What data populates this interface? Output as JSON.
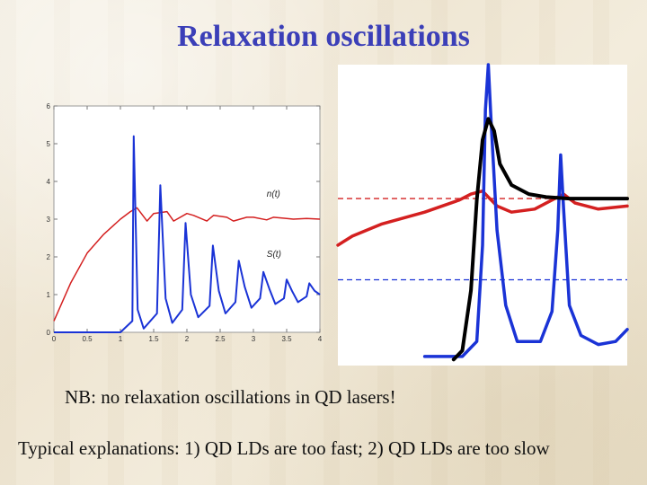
{
  "title": "Relaxation oscillations",
  "note": "NB: no relaxation oscillations in QD lasers!",
  "explanations": "Typical explanations: 1) QD LDs are too fast; 2) QD LDs are too slow",
  "colors": {
    "title": "#3b3fb8",
    "n_curve": "#d42020",
    "s_curve": "#1a33d6",
    "fast_response": "#000000"
  },
  "chart_data": [
    {
      "type": "line",
      "title": "",
      "xlabel": "",
      "ylabel": "",
      "xlim": [
        0,
        4
      ],
      "ylim": [
        0,
        6
      ],
      "xticks": [
        "0",
        "0.5",
        "1",
        "1.5",
        "2",
        "2.5",
        "3",
        "3.5",
        "4"
      ],
      "yticks": [
        "0",
        "1",
        "2",
        "3",
        "4",
        "5",
        "6"
      ],
      "grid": false,
      "annotations": [
        {
          "text": "n(t)",
          "x": 3.2,
          "y": 3.6
        },
        {
          "text": "S(t)",
          "x": 3.2,
          "y": 2.0
        }
      ],
      "series": [
        {
          "name": "n(t)",
          "x": [
            0,
            0.25,
            0.5,
            0.75,
            1.0,
            1.15,
            1.25,
            1.4,
            1.5,
            1.7,
            1.8,
            2.0,
            2.1,
            2.3,
            2.4,
            2.6,
            2.7,
            2.9,
            3.0,
            3.2,
            3.3,
            3.5,
            3.6,
            3.8,
            4.0
          ],
          "y": [
            0.3,
            1.3,
            2.1,
            2.6,
            3.0,
            3.2,
            3.3,
            2.95,
            3.15,
            3.2,
            2.95,
            3.15,
            3.1,
            2.95,
            3.1,
            3.05,
            2.95,
            3.05,
            3.05,
            2.98,
            3.05,
            3.02,
            3.0,
            3.02,
            3.0
          ]
        },
        {
          "name": "S(t)",
          "x": [
            0,
            1.0,
            1.18,
            1.2,
            1.26,
            1.35,
            1.55,
            1.6,
            1.68,
            1.78,
            1.93,
            1.98,
            2.06,
            2.17,
            2.34,
            2.39,
            2.48,
            2.58,
            2.73,
            2.78,
            2.87,
            2.97,
            3.1,
            3.15,
            3.24,
            3.33,
            3.46,
            3.5,
            3.58,
            3.67,
            3.8,
            3.84,
            3.92,
            4.0
          ],
          "y": [
            0,
            0,
            0.3,
            5.2,
            0.6,
            0.1,
            0.5,
            3.9,
            0.9,
            0.25,
            0.6,
            2.9,
            1.0,
            0.4,
            0.7,
            2.3,
            1.1,
            0.5,
            0.8,
            1.9,
            1.2,
            0.65,
            0.9,
            1.6,
            1.15,
            0.75,
            0.9,
            1.4,
            1.1,
            0.8,
            0.95,
            1.3,
            1.1,
            1.0
          ]
        }
      ]
    },
    {
      "type": "line",
      "title": "",
      "xlabel": "",
      "ylabel": "",
      "xlim": [
        0,
        1
      ],
      "ylim": [
        0,
        1
      ],
      "xticks": [],
      "yticks": [],
      "grid": false,
      "reference_lines": [
        {
          "y": 0.555,
          "color": "#d42020",
          "style": "dashed"
        },
        {
          "y": 0.285,
          "color": "#1a33d6",
          "style": "dashed"
        }
      ],
      "series": [
        {
          "name": "red",
          "x": [
            0,
            0.05,
            0.15,
            0.3,
            0.42,
            0.46,
            0.5,
            0.52,
            0.55,
            0.6,
            0.68,
            0.74,
            0.78,
            0.82,
            0.9,
            1.0
          ],
          "y": [
            0.4,
            0.43,
            0.47,
            0.51,
            0.55,
            0.57,
            0.58,
            0.56,
            0.53,
            0.51,
            0.52,
            0.55,
            0.57,
            0.54,
            0.52,
            0.53
          ]
        },
        {
          "name": "blue",
          "x": [
            0.3,
            0.43,
            0.48,
            0.5,
            0.51,
            0.52,
            0.53,
            0.55,
            0.58,
            0.62,
            0.7,
            0.74,
            0.76,
            0.77,
            0.78,
            0.8,
            0.84,
            0.9,
            0.96,
            1.0
          ],
          "y": [
            0.03,
            0.03,
            0.08,
            0.4,
            0.85,
            1.0,
            0.8,
            0.45,
            0.2,
            0.08,
            0.08,
            0.18,
            0.45,
            0.7,
            0.52,
            0.2,
            0.1,
            0.07,
            0.08,
            0.12
          ]
        },
        {
          "name": "black",
          "x": [
            0.4,
            0.43,
            0.46,
            0.48,
            0.5,
            0.52,
            0.54,
            0.56,
            0.6,
            0.66,
            0.72,
            0.8,
            1.0
          ],
          "y": [
            0.02,
            0.05,
            0.25,
            0.55,
            0.75,
            0.82,
            0.78,
            0.67,
            0.6,
            0.57,
            0.56,
            0.555,
            0.555
          ]
        }
      ]
    }
  ]
}
